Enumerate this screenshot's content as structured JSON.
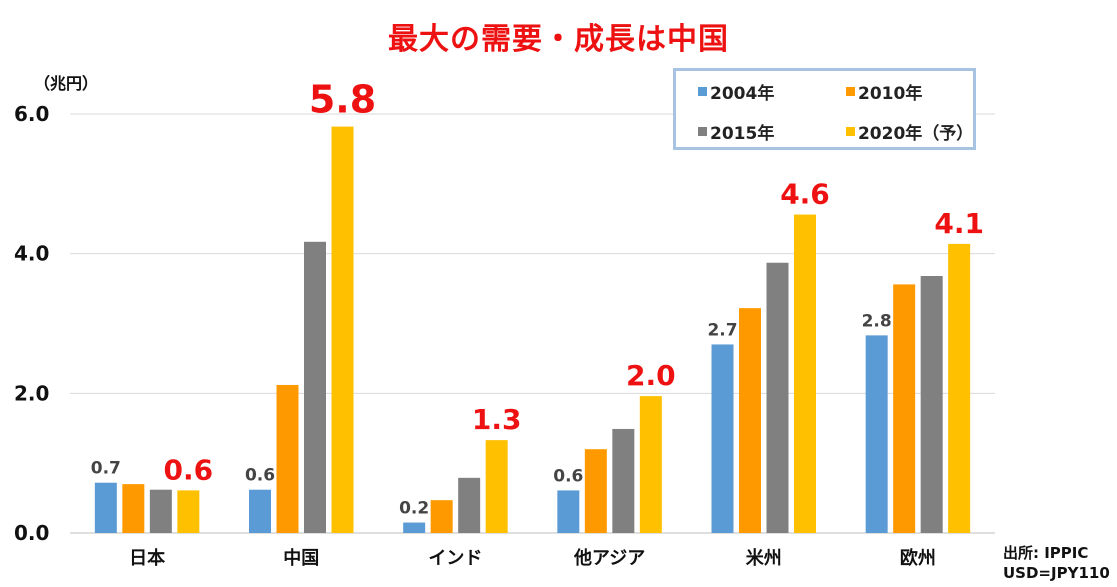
{
  "chart_data": {
    "type": "bar",
    "title": "最大の需要・成長は中国",
    "ylabel": "（兆円）",
    "ylim": [
      0,
      6.0
    ],
    "yticks": [
      "0.0",
      "2.0",
      "4.0",
      "6.0"
    ],
    "grid": true,
    "legend_position": "top-right",
    "categories": [
      "日本",
      "中国",
      "インド",
      "他アジア",
      "米州",
      "欧州"
    ],
    "series": [
      {
        "name": "2004年",
        "color": "#5b9bd5",
        "values": [
          0.72,
          0.62,
          0.15,
          0.61,
          2.7,
          2.83
        ]
      },
      {
        "name": "2010年",
        "color": "#ff9900",
        "values": [
          0.7,
          2.12,
          0.47,
          1.2,
          3.22,
          3.56
        ]
      },
      {
        "name": "2015年",
        "color": "#808080",
        "values": [
          0.62,
          4.17,
          0.79,
          1.49,
          3.87,
          3.68
        ]
      },
      {
        "name": "2020年（予）",
        "color": "#ffc000",
        "values": [
          0.61,
          5.82,
          1.33,
          1.96,
          4.56,
          4.14
        ]
      }
    ],
    "data_labels": {
      "first_series": [
        "0.7",
        "0.6",
        "0.2",
        "0.6",
        "2.7",
        "2.8"
      ],
      "last_series": [
        "0.6",
        "5.8",
        "1.3",
        "2.0",
        "4.6",
        "4.1"
      ]
    },
    "highlight_color": "#ee1111"
  },
  "source": {
    "line1": "出所: IPPIC",
    "line2": "USD=JPY110"
  }
}
